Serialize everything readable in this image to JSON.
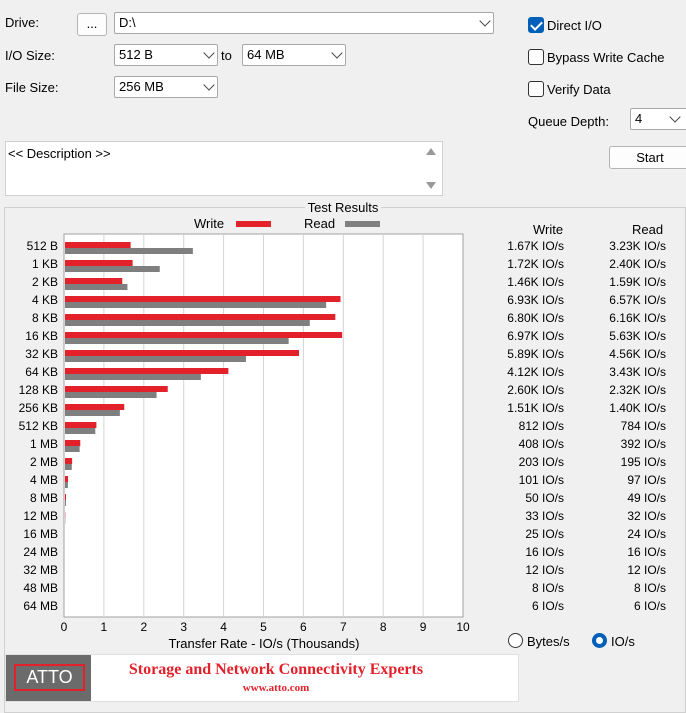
{
  "drive": {
    "label": "Drive:",
    "browse": "...",
    "value": "D:\\"
  },
  "io_size": {
    "label": "I/O Size:",
    "from": "512 B",
    "to_label": "to",
    "to": "64 MB"
  },
  "file_size": {
    "label": "File Size:",
    "value": "256 MB"
  },
  "options": {
    "direct_io": {
      "label": "Direct I/O",
      "checked": true
    },
    "bypass_write_cache": {
      "label": "Bypass Write Cache",
      "checked": false
    },
    "verify_data": {
      "label": "Verify Data",
      "checked": false
    }
  },
  "queue_depth": {
    "label": "Queue Depth:",
    "value": "4"
  },
  "start_label": "Start",
  "description": "<< Description >>",
  "results": {
    "title": "Test Results",
    "write_legend": "Write",
    "read_legend": "Read",
    "col_write": "Write",
    "col_read": "Read",
    "write_values": [
      "1.67K IO/s",
      "1.72K IO/s",
      "1.46K IO/s",
      "6.93K IO/s",
      "6.80K IO/s",
      "6.97K IO/s",
      "5.89K IO/s",
      "4.12K IO/s",
      "2.60K IO/s",
      "1.51K IO/s",
      "812 IO/s",
      "408 IO/s",
      "203 IO/s",
      "101 IO/s",
      "50 IO/s",
      "33 IO/s",
      "25 IO/s",
      "16 IO/s",
      "12 IO/s",
      "8 IO/s",
      "6 IO/s"
    ],
    "read_values": [
      "3.23K IO/s",
      "2.40K IO/s",
      "1.59K IO/s",
      "6.57K IO/s",
      "6.16K IO/s",
      "5.63K IO/s",
      "4.56K IO/s",
      "3.43K IO/s",
      "2.32K IO/s",
      "1.40K IO/s",
      "784 IO/s",
      "392 IO/s",
      "195 IO/s",
      "97 IO/s",
      "49 IO/s",
      "32 IO/s",
      "24 IO/s",
      "16 IO/s",
      "12 IO/s",
      "8 IO/s",
      "6 IO/s"
    ],
    "units": {
      "bytes_label": "Bytes/s",
      "ios_label": "IO/s",
      "selected": "IO/s"
    }
  },
  "chart_data": {
    "type": "bar",
    "orientation": "horizontal",
    "categories": [
      "512 B",
      "1 KB",
      "2 KB",
      "4 KB",
      "8 KB",
      "16 KB",
      "32 KB",
      "64 KB",
      "128 KB",
      "256 KB",
      "512 KB",
      "1 MB",
      "2 MB",
      "4 MB",
      "8 MB",
      "12 MB",
      "16 MB",
      "24 MB",
      "32 MB",
      "48 MB",
      "64 MB"
    ],
    "series": [
      {
        "name": "Write",
        "color": "#e3212a",
        "values": [
          1.67,
          1.72,
          1.46,
          6.93,
          6.8,
          6.97,
          5.89,
          4.12,
          2.6,
          1.51,
          0.812,
          0.408,
          0.203,
          0.101,
          0.05,
          0.033,
          0.025,
          0.016,
          0.012,
          0.008,
          0.006
        ]
      },
      {
        "name": "Read",
        "color": "#7f7f7f",
        "values": [
          3.23,
          2.4,
          1.59,
          6.57,
          6.16,
          5.63,
          4.56,
          3.43,
          2.32,
          1.4,
          0.784,
          0.392,
          0.195,
          0.097,
          0.049,
          0.032,
          0.024,
          0.016,
          0.012,
          0.008,
          0.006
        ]
      }
    ],
    "xlabel": "Transfer Rate - IO/s (Thousands)",
    "xticks": [
      "0",
      "1",
      "2",
      "3",
      "4",
      "5",
      "6",
      "7",
      "8",
      "9",
      "10"
    ],
    "xlim": [
      0,
      10
    ],
    "grid": true,
    "legend": "top"
  },
  "banner": {
    "logo": "ATTO",
    "tagline": "Storage and Network Connectivity Experts",
    "url": "www.atto.com"
  }
}
